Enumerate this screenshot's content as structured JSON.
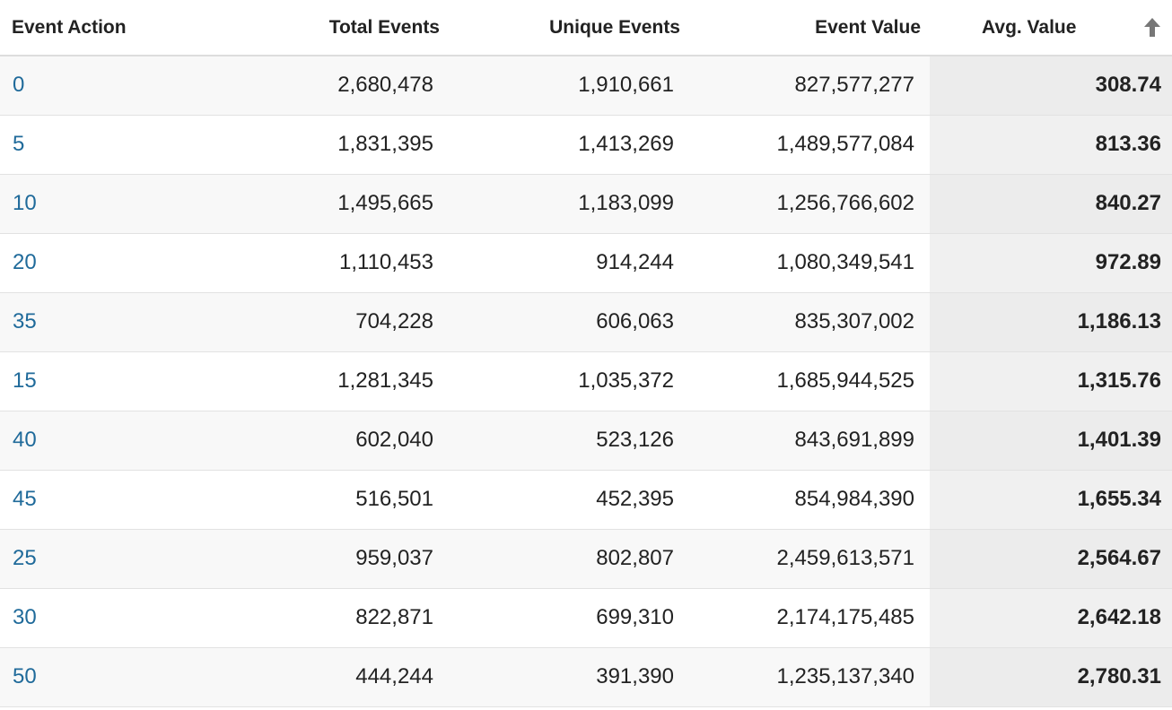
{
  "table": {
    "headers": {
      "event_action": "Event Action",
      "total_events": "Total Events",
      "unique_events": "Unique Events",
      "event_value": "Event Value",
      "avg_value": "Avg. Value"
    },
    "sort_icon": "arrow-up-icon",
    "rows": [
      {
        "action": "0",
        "total": "2,680,478",
        "unique": "1,910,661",
        "value": "827,577,277",
        "avg": "308.74"
      },
      {
        "action": "5",
        "total": "1,831,395",
        "unique": "1,413,269",
        "value": "1,489,577,084",
        "avg": "813.36"
      },
      {
        "action": "10",
        "total": "1,495,665",
        "unique": "1,183,099",
        "value": "1,256,766,602",
        "avg": "840.27"
      },
      {
        "action": "20",
        "total": "1,110,453",
        "unique": "914,244",
        "value": "1,080,349,541",
        "avg": "972.89"
      },
      {
        "action": "35",
        "total": "704,228",
        "unique": "606,063",
        "value": "835,307,002",
        "avg": "1,186.13"
      },
      {
        "action": "15",
        "total": "1,281,345",
        "unique": "1,035,372",
        "value": "1,685,944,525",
        "avg": "1,315.76"
      },
      {
        "action": "40",
        "total": "602,040",
        "unique": "523,126",
        "value": "843,691,899",
        "avg": "1,401.39"
      },
      {
        "action": "45",
        "total": "516,501",
        "unique": "452,395",
        "value": "854,984,390",
        "avg": "1,655.34"
      },
      {
        "action": "25",
        "total": "959,037",
        "unique": "802,807",
        "value": "2,459,613,571",
        "avg": "2,564.67"
      },
      {
        "action": "30",
        "total": "822,871",
        "unique": "699,310",
        "value": "2,174,175,485",
        "avg": "2,642.18"
      },
      {
        "action": "50",
        "total": "444,244",
        "unique": "391,390",
        "value": "1,235,137,340",
        "avg": "2,780.31"
      }
    ]
  },
  "colors": {
    "link": "#1f6a9a",
    "sorted_column_bg": "#ececec",
    "sort_icon": "#777777"
  }
}
